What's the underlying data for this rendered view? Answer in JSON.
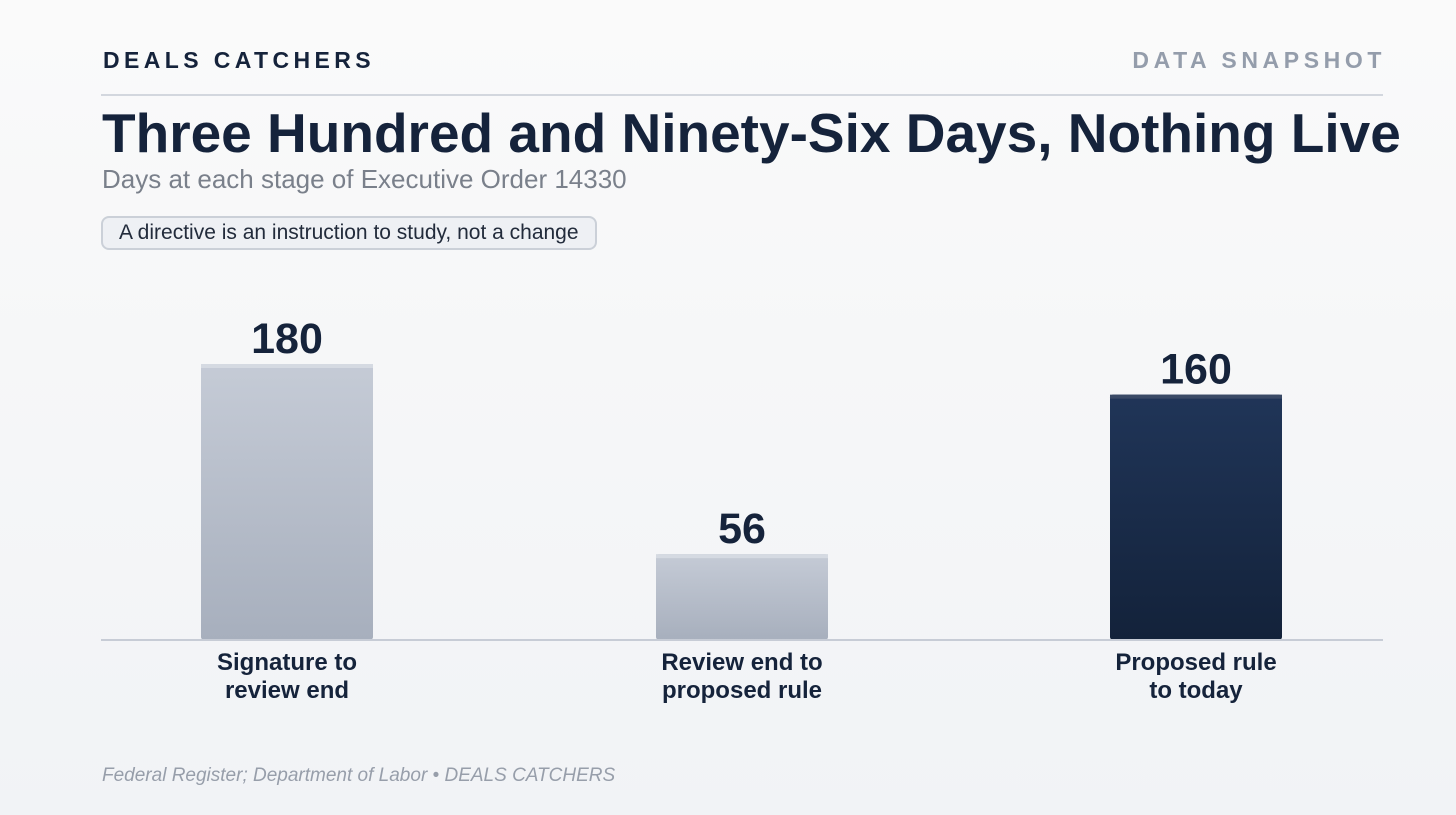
{
  "header": {
    "brand": "DEALS CATCHERS",
    "tag": "DATA SNAPSHOT"
  },
  "title": "Three Hundred and Ninety-Six Days, Nothing Live",
  "subtitle": "Days at each stage of Executive Order 14330",
  "note": "A directive is an instruction to study, not a change",
  "source": "Federal Register; Department of Labor • DEALS CATCHERS",
  "colors": {
    "text": "#15233b",
    "muted_bar_top": "#c5cbd6",
    "muted_bar_bottom": "#a7afbd",
    "highlight_bar_top": "#203558",
    "highlight_bar_bottom": "#13223a",
    "baseline": "#c7ccd6"
  },
  "chart_data": {
    "type": "bar",
    "categories": [
      [
        "Signature to",
        "review end"
      ],
      [
        "Review end to",
        "proposed rule"
      ],
      [
        "Proposed rule",
        "to today"
      ]
    ],
    "values": [
      180,
      56,
      160
    ],
    "value_labels": [
      "180",
      "56",
      "160"
    ],
    "highlight": [
      false,
      false,
      true
    ],
    "ylim": [
      0,
      180
    ],
    "grid": false,
    "legend": "none"
  }
}
